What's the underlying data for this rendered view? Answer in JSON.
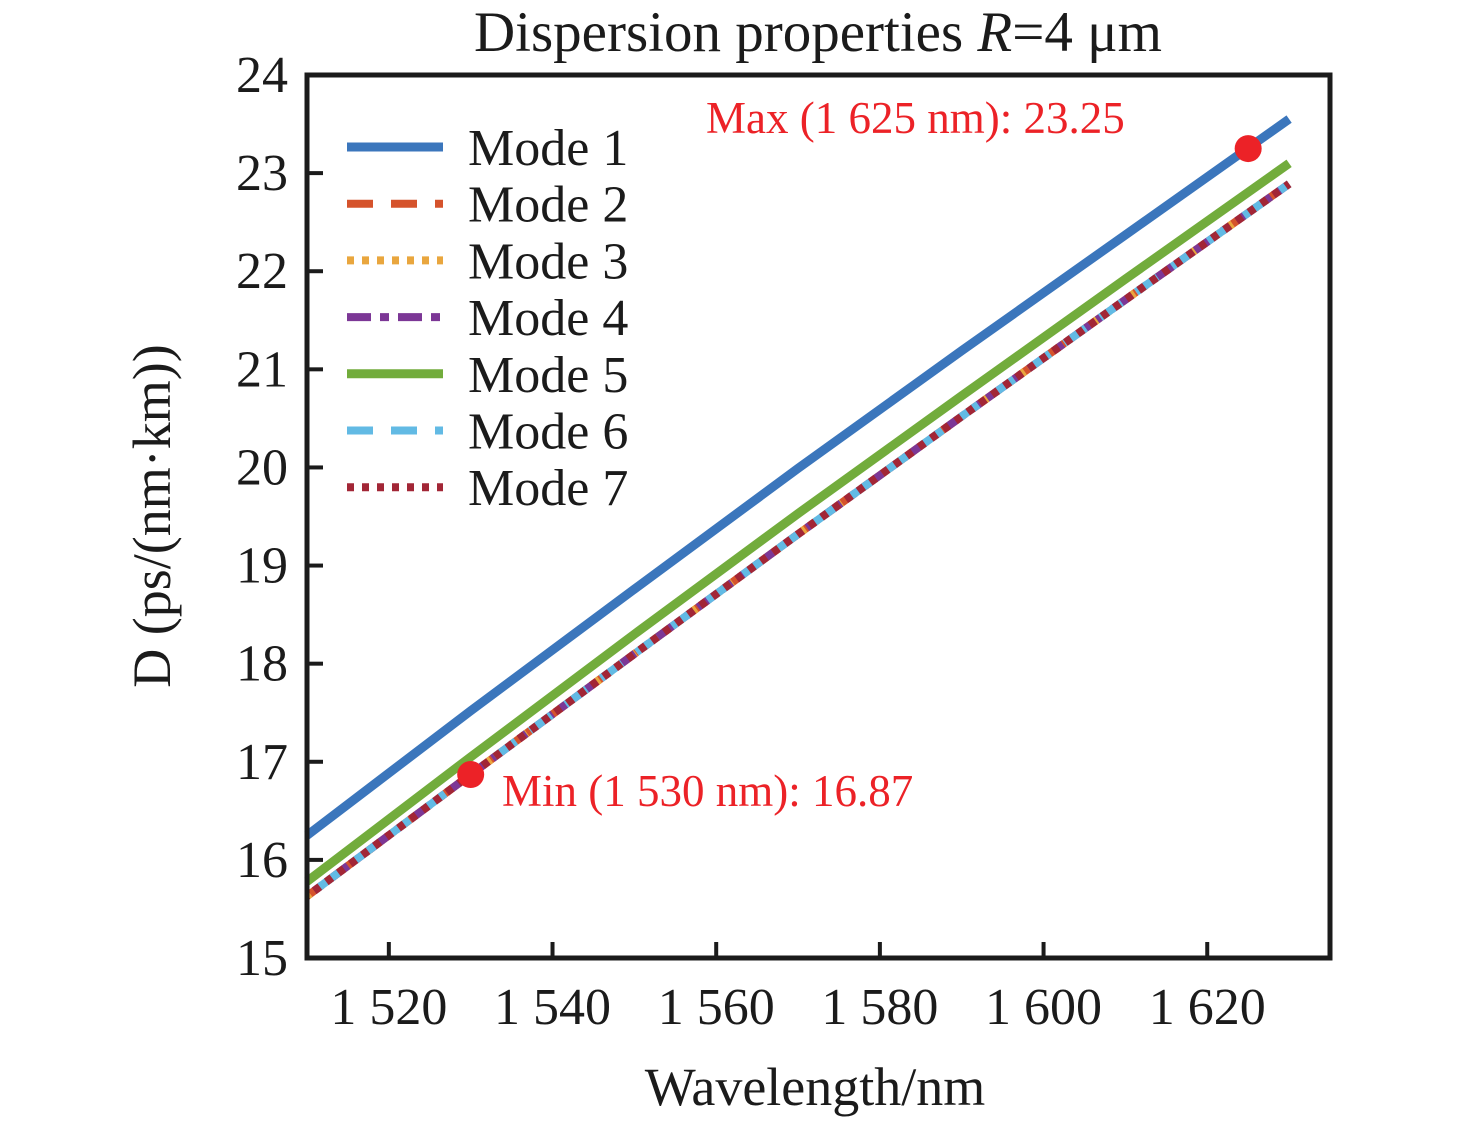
{
  "title": {
    "prefix": "Dispersion properties ",
    "italic": "R",
    "suffix": "=4 μm"
  },
  "colors": {
    "annotation_red": "#ec2227",
    "axis": "#1b1b1b",
    "background": "#ffffff"
  },
  "chart_data": {
    "type": "line",
    "title": "Dispersion properties R=4 μm",
    "xlabel": "Wavelength/nm",
    "ylabel": "D (ps/(nm·km))",
    "xlim": [
      1510,
      1635
    ],
    "ylim": [
      15,
      24
    ],
    "grid": false,
    "legend_position": "upper-left",
    "x": [
      1510,
      1530,
      1550,
      1570,
      1590,
      1610,
      1630
    ],
    "x_tick_values": [
      1520,
      1540,
      1560,
      1580,
      1600,
      1620
    ],
    "x_tick_labels": [
      "1 520",
      "1 540",
      "1 560",
      "1 580",
      "1 600",
      "1 620"
    ],
    "y_tick_values": [
      15,
      16,
      17,
      18,
      19,
      20,
      21,
      22,
      23,
      24
    ],
    "y_tick_labels": [
      "15",
      "16",
      "17",
      "18",
      "19",
      "20",
      "21",
      "22",
      "23",
      "24"
    ],
    "series": [
      {
        "name": "Mode 1",
        "color": "#3b76bc",
        "line_style": "solid",
        "values": [
          16.25,
          17.52,
          18.76,
          19.99,
          21.19,
          22.37,
          23.55
        ]
      },
      {
        "name": "Mode 2",
        "color": "#d5532c",
        "line_style": "dashed",
        "values": [
          15.63,
          16.87,
          18.1,
          19.32,
          20.52,
          21.71,
          22.89
        ]
      },
      {
        "name": "Mode 3",
        "color": "#e9a63e",
        "line_style": "dotted",
        "values": [
          15.63,
          16.87,
          18.1,
          19.32,
          20.52,
          21.71,
          22.89
        ]
      },
      {
        "name": "Mode 4",
        "color": "#7c3796",
        "line_style": "dash-dot",
        "values": [
          15.63,
          16.87,
          18.1,
          19.32,
          20.52,
          21.71,
          22.89
        ]
      },
      {
        "name": "Mode 5",
        "color": "#72ac3c",
        "line_style": "solid",
        "values": [
          15.78,
          17.05,
          18.3,
          19.53,
          20.73,
          21.92,
          23.1
        ]
      },
      {
        "name": "Mode 6",
        "color": "#62bae4",
        "line_style": "dashed",
        "values": [
          15.63,
          16.87,
          18.1,
          19.32,
          20.52,
          21.71,
          22.89
        ]
      },
      {
        "name": "Mode 7",
        "color": "#a22636",
        "line_style": "dotted",
        "values": [
          15.63,
          16.87,
          18.1,
          19.32,
          20.52,
          21.71,
          22.89
        ]
      }
    ],
    "markers": [
      {
        "label": "Max (1 625 nm): 23.25",
        "x": 1625,
        "y": 23.25,
        "color": "#ec2227"
      },
      {
        "label": "Min (1 530 nm): 16.87",
        "x": 1530,
        "y": 16.87,
        "color": "#ec2227"
      }
    ]
  }
}
